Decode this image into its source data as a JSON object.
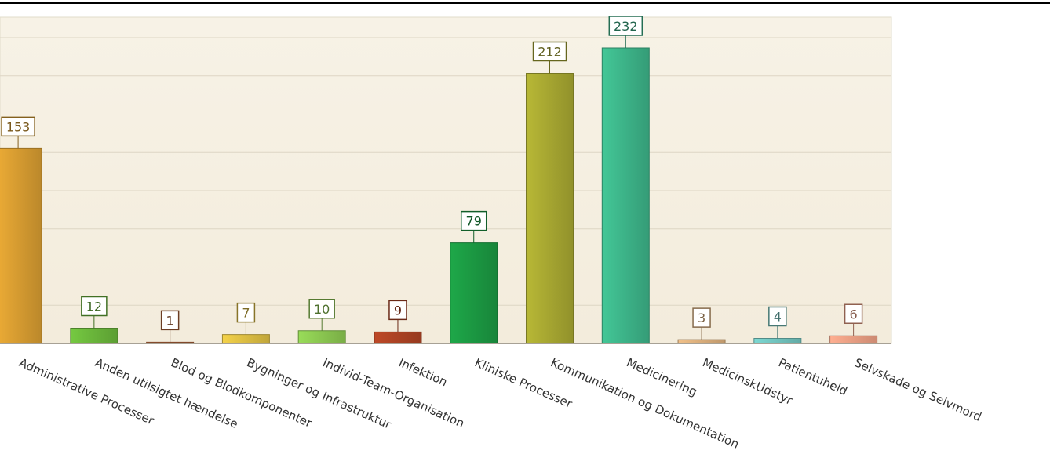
{
  "chart_data": {
    "type": "bar",
    "categories": [
      "Administrative Processer",
      "Anden utilsigtet hændelse",
      "Blod og Blodkomponenter",
      "Bygninger og Infrastruktur",
      "Individ-Team-Organisation",
      "Infektion",
      "Kliniske Processer",
      "Kommunikation og Dokumentation",
      "Medicinering",
      "MedicinskUdstyr",
      "Patientuheld",
      "Selvskade og Selvmord"
    ],
    "values": [
      153,
      12,
      1,
      7,
      10,
      9,
      79,
      212,
      232,
      3,
      4,
      6
    ],
    "colors": [
      "#dca032",
      "#6cba3c",
      "#b2643a",
      "#e2c244",
      "#8ecc52",
      "#b04424",
      "#1c9c44",
      "#aaaa32",
      "#3eb88c",
      "#dfb27e",
      "#74c8c2",
      "#f0a286"
    ],
    "ylim": [
      0,
      256
    ],
    "yticks": [
      0,
      30,
      60,
      90,
      120,
      150,
      180,
      210,
      240
    ],
    "grid": true
  }
}
